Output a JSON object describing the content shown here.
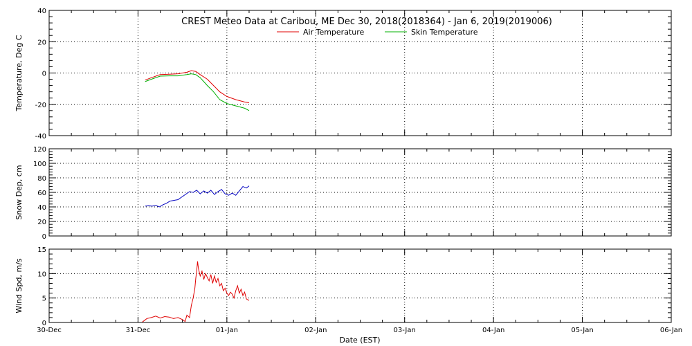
{
  "title": "CREST Meteo Data at Caribou, ME   Dec 30, 2018(2018364) - Jan  6, 2019(2019006)",
  "xlabel": "Date (EST)",
  "x_ticks": [
    "30-Dec",
    "31-Dec",
    "01-Jan",
    "02-Jan",
    "03-Jan",
    "04-Jan",
    "05-Jan",
    "06-Jan"
  ],
  "colors": {
    "air": "#e00000",
    "skin": "#00b000",
    "snow": "#0000c0",
    "wind": "#e00000",
    "grid": "#000000"
  },
  "chart_data": [
    {
      "type": "line",
      "ylabel": "Temperature, Deg C",
      "ylim": [
        -40,
        40
      ],
      "yticks": [
        -40,
        -20,
        0,
        20,
        40
      ],
      "xlim_days": [
        0,
        7
      ],
      "grid": true,
      "legend": "top-center",
      "series": [
        {
          "name": "Air Temperature",
          "color": "#e00000",
          "points": [
            [
              1.08,
              -4.5
            ],
            [
              1.15,
              -3.0
            ],
            [
              1.25,
              -1.0
            ],
            [
              1.35,
              -0.8
            ],
            [
              1.45,
              -0.5
            ],
            [
              1.55,
              0.5
            ],
            [
              1.6,
              1.5
            ],
            [
              1.65,
              1.0
            ],
            [
              1.7,
              -1.0
            ],
            [
              1.78,
              -4.0
            ],
            [
              1.85,
              -8.0
            ],
            [
              1.92,
              -12.0
            ],
            [
              2.0,
              -15.0
            ],
            [
              2.1,
              -17.0
            ],
            [
              2.2,
              -18.5
            ],
            [
              2.25,
              -19.0
            ]
          ]
        },
        {
          "name": "Skin Temperature",
          "color": "#00b000",
          "points": [
            [
              1.08,
              -5.5
            ],
            [
              1.15,
              -4.0
            ],
            [
              1.25,
              -2.0
            ],
            [
              1.35,
              -1.8
            ],
            [
              1.45,
              -1.8
            ],
            [
              1.55,
              -1.0
            ],
            [
              1.6,
              -0.5
            ],
            [
              1.65,
              -1.0
            ],
            [
              1.7,
              -3.0
            ],
            [
              1.78,
              -8.0
            ],
            [
              1.85,
              -12.0
            ],
            [
              1.92,
              -17.0
            ],
            [
              2.0,
              -19.5
            ],
            [
              2.1,
              -21.0
            ],
            [
              2.2,
              -22.5
            ],
            [
              2.25,
              -24.0
            ]
          ]
        }
      ]
    },
    {
      "type": "line",
      "ylabel": "Snow Dep, cm",
      "ylim": [
        0,
        120
      ],
      "yticks": [
        0,
        20,
        40,
        60,
        80,
        100,
        120
      ],
      "xlim_days": [
        0,
        7
      ],
      "grid": true,
      "series": [
        {
          "name": "",
          "color": "#0000c0",
          "points": [
            [
              1.08,
              41
            ],
            [
              1.12,
              41.5
            ],
            [
              1.16,
              41
            ],
            [
              1.2,
              42
            ],
            [
              1.24,
              40
            ],
            [
              1.28,
              43
            ],
            [
              1.32,
              45
            ],
            [
              1.36,
              48
            ],
            [
              1.45,
              50
            ],
            [
              1.58,
              61
            ],
            [
              1.62,
              60
            ],
            [
              1.66,
              63
            ],
            [
              1.7,
              58
            ],
            [
              1.74,
              62
            ],
            [
              1.78,
              59
            ],
            [
              1.82,
              63
            ],
            [
              1.86,
              57
            ],
            [
              1.9,
              61
            ],
            [
              1.94,
              64
            ],
            [
              1.98,
              58
            ],
            [
              2.02,
              56
            ],
            [
              2.06,
              59
            ],
            [
              2.1,
              56
            ],
            [
              2.14,
              62
            ],
            [
              2.18,
              68
            ],
            [
              2.22,
              66
            ],
            [
              2.25,
              69
            ]
          ]
        }
      ]
    },
    {
      "type": "line",
      "ylabel": "Wind Spd, m/s",
      "ylim": [
        0,
        15
      ],
      "yticks": [
        0,
        5,
        10,
        15
      ],
      "xlim_days": [
        0,
        7
      ],
      "grid": true,
      "series": [
        {
          "name": "",
          "color": "#e00000",
          "points": [
            [
              1.05,
              0.1
            ],
            [
              1.1,
              0.8
            ],
            [
              1.15,
              1.0
            ],
            [
              1.2,
              1.3
            ],
            [
              1.25,
              0.9
            ],
            [
              1.3,
              1.2
            ],
            [
              1.35,
              1.1
            ],
            [
              1.4,
              0.8
            ],
            [
              1.45,
              1.0
            ],
            [
              1.5,
              0.6
            ],
            [
              1.53,
              0.2
            ],
            [
              1.55,
              1.5
            ],
            [
              1.58,
              1.0
            ],
            [
              1.6,
              3.5
            ],
            [
              1.62,
              5.0
            ],
            [
              1.64,
              7.0
            ],
            [
              1.65,
              9.0
            ],
            [
              1.66,
              10.5
            ],
            [
              1.67,
              12.5
            ],
            [
              1.68,
              11.0
            ],
            [
              1.7,
              9.5
            ],
            [
              1.72,
              10.5
            ],
            [
              1.74,
              8.8
            ],
            [
              1.76,
              10.0
            ],
            [
              1.78,
              9.2
            ],
            [
              1.8,
              8.5
            ],
            [
              1.82,
              9.8
            ],
            [
              1.84,
              8.0
            ],
            [
              1.86,
              9.5
            ],
            [
              1.88,
              8.2
            ],
            [
              1.9,
              9.0
            ],
            [
              1.92,
              7.5
            ],
            [
              1.94,
              8.0
            ],
            [
              1.96,
              6.5
            ],
            [
              1.98,
              7.0
            ],
            [
              2.0,
              6.0
            ],
            [
              2.02,
              5.5
            ],
            [
              2.04,
              6.2
            ],
            [
              2.06,
              5.8
            ],
            [
              2.08,
              5.0
            ],
            [
              2.1,
              6.5
            ],
            [
              2.12,
              7.5
            ],
            [
              2.14,
              6.0
            ],
            [
              2.16,
              6.8
            ],
            [
              2.18,
              5.5
            ],
            [
              2.2,
              6.2
            ],
            [
              2.22,
              4.8
            ],
            [
              2.25,
              4.5
            ]
          ]
        }
      ]
    }
  ]
}
